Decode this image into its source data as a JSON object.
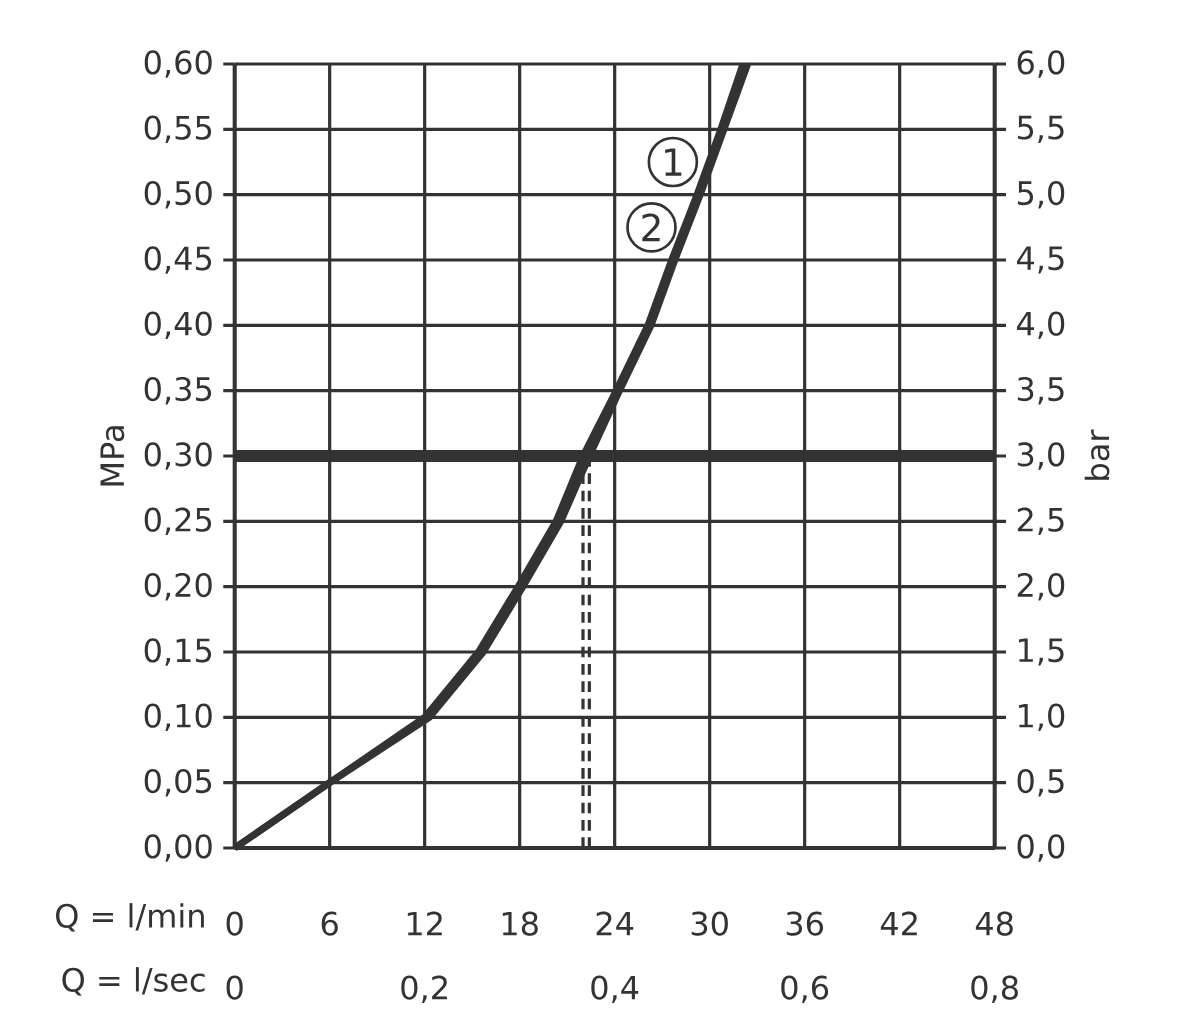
{
  "chart_data": {
    "type": "line",
    "xlabel": "Q = l/min",
    "x2label": "Q = l/sec",
    "ylabel": "MPa",
    "y2label": "bar",
    "xlim": [
      0,
      48
    ],
    "xticks": [
      0,
      6,
      12,
      18,
      24,
      30,
      36,
      42,
      48
    ],
    "x2lim": [
      0,
      0.8
    ],
    "x2ticks": [
      0,
      {
        "value": 0.2,
        "label": "0,2"
      },
      {
        "value": 0.4,
        "label": "0,4"
      },
      {
        "value": 0.6,
        "label": "0,6"
      },
      {
        "value": 0.8,
        "label": "0,8"
      }
    ],
    "ylim": [
      0,
      0.6
    ],
    "yticks": [
      {
        "value": 0,
        "label": "0,00"
      },
      {
        "value": 0.05,
        "label": "0,05"
      },
      {
        "value": 0.1,
        "label": "0,10"
      },
      {
        "value": 0.15,
        "label": "0,15"
      },
      {
        "value": 0.2,
        "label": "0,20"
      },
      {
        "value": 0.25,
        "label": "0,25"
      },
      {
        "value": 0.3,
        "label": "0,30"
      },
      {
        "value": 0.35,
        "label": "0,35"
      },
      {
        "value": 0.4,
        "label": "0,40"
      },
      {
        "value": 0.45,
        "label": "0,45"
      },
      {
        "value": 0.5,
        "label": "0,50"
      },
      {
        "value": 0.55,
        "label": "0,55"
      },
      {
        "value": 0.6,
        "label": "0,60"
      }
    ],
    "y2lim": [
      0,
      6
    ],
    "y2ticks": [
      {
        "value": 0,
        "label": "0,0"
      },
      {
        "value": 0.5,
        "label": "0,5"
      },
      {
        "value": 1,
        "label": "1,0"
      },
      {
        "value": 1.5,
        "label": "1,5"
      },
      {
        "value": 2,
        "label": "2,0"
      },
      {
        "value": 2.5,
        "label": "2,5"
      },
      {
        "value": 3,
        "label": "3,0"
      },
      {
        "value": 3.5,
        "label": "3,5"
      },
      {
        "value": 4,
        "label": "4,0"
      },
      {
        "value": 4.5,
        "label": "4,5"
      },
      {
        "value": 5,
        "label": "5,0"
      },
      {
        "value": 5.5,
        "label": "5,5"
      },
      {
        "value": 6,
        "label": "6,0"
      }
    ],
    "series": [
      {
        "name": "1",
        "color": "#333333",
        "x": [
          0,
          6,
          12,
          15.4,
          17.9,
          20.3,
          22.0,
          24.1,
          26.1,
          27.6,
          29.2,
          30.7,
          32.1
        ],
        "values": [
          0,
          0.05,
          0.1,
          0.15,
          0.2,
          0.25,
          0.3,
          0.35,
          0.4,
          0.45,
          0.5,
          0.55,
          0.6
        ]
      },
      {
        "name": "2",
        "color": "#333333",
        "x": [
          0,
          6,
          12.3,
          15.7,
          18.2,
          20.6,
          22.4,
          24.3,
          26.3,
          27.8,
          29.4,
          30.9,
          32.4
        ],
        "values": [
          0,
          0.05,
          0.1,
          0.15,
          0.2,
          0.25,
          0.3,
          0.35,
          0.4,
          0.45,
          0.5,
          0.55,
          0.6
        ]
      }
    ],
    "ref_lines": [
      {
        "axis": "y",
        "value": 0.3,
        "color": "#333333",
        "line_style": "solid"
      },
      {
        "axis": "x",
        "value": 22.0,
        "color": "#333333",
        "line_style": "dashed"
      },
      {
        "axis": "x",
        "value": 22.4,
        "color": "#333333",
        "line_style": "dashed"
      }
    ],
    "grid": true,
    "legend": "top right",
    "marker": "none",
    "line_style": "solid"
  }
}
